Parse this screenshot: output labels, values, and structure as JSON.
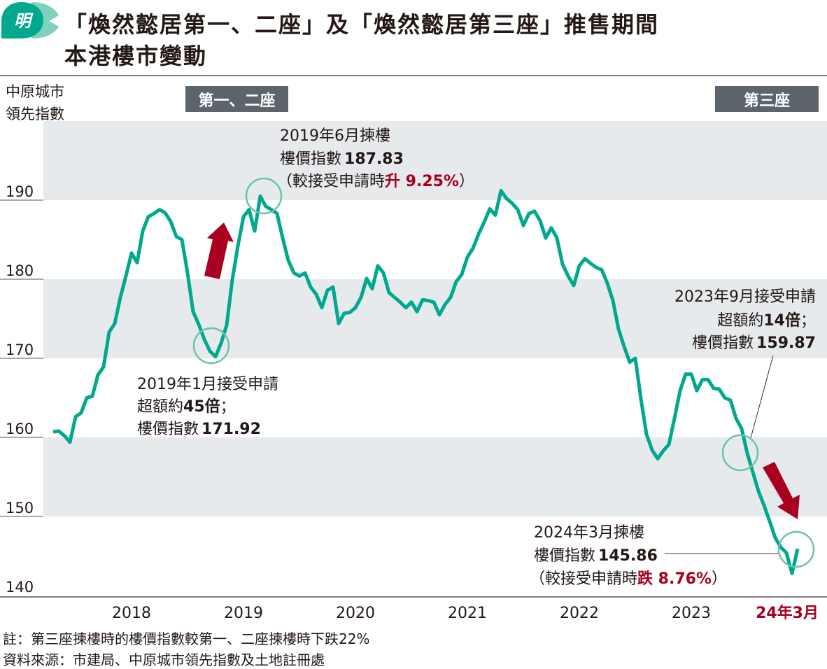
{
  "header": {
    "logo_char": "明",
    "title_line1": "「煥然懿居第一、二座」及「煥然懿居第三座」推售期間",
    "title_line2": "本港樓市變動"
  },
  "tags": {
    "blocks12": "第一、二座",
    "block3": "第三座"
  },
  "colors": {
    "line": "#00a88e",
    "band": "#e6eaed",
    "circle": "#6cc4a8",
    "arrow": "#a8001e",
    "tag": "#5b656b",
    "highlight": "#a8001e"
  },
  "annotations": {
    "jun2019": {
      "l1": "2019年6月揀樓",
      "l2a": "樓價指數",
      "l2b": "187.83",
      "l3a": "（較接受申請時",
      "l3b": "升 9.25%",
      "l3c": "）"
    },
    "jan2019": {
      "l1": "2019年1月接受申請",
      "l2a": "超額約",
      "l2b": "45倍",
      "l2c": "；",
      "l3a": "樓價指數",
      "l3b": "171.92"
    },
    "sep2023": {
      "l1": "2023年9月接受申請",
      "l2a": "超額約",
      "l2b": "14倍",
      "l2c": "；",
      "l3a": "樓價指數",
      "l3b": "159.87"
    },
    "mar2024": {
      "l1": "2024年3月揀樓",
      "l2a": "樓價指數",
      "l2b": "145.86",
      "l3a": "（較接受申請時",
      "l3b": "跌 8.76%",
      "l3c": "）"
    }
  },
  "notes": {
    "note1": "註：第三座揀樓時的樓價指數較第一、二座揀樓時下跌22%",
    "note2": "資料來源：市建局、中原城市領先指數及土地註冊處"
  },
  "chart_data": {
    "type": "line",
    "title": "「煥然懿居第一、二座」及「煥然懿居第三座」推售期間本港樓市變動",
    "ylabel_line1": "中原城市",
    "ylabel_line2": "領先指數",
    "ylim": [
      140,
      200
    ],
    "yticks": [
      140,
      150,
      160,
      170,
      180,
      190
    ],
    "xlim": [
      2017.5,
      2024.25
    ],
    "xticks": [
      {
        "label": "2018",
        "year": 2018
      },
      {
        "label": "2019",
        "year": 2019
      },
      {
        "label": "2020",
        "year": 2020
      },
      {
        "label": "2021",
        "year": 2021
      },
      {
        "label": "2022",
        "year": 2022
      },
      {
        "label": "2023",
        "year": 2023
      }
    ],
    "xtick_end_label": "24年3月",
    "grid": "alternating horizontal bands",
    "series": [
      {
        "name": "中原城市領先指數",
        "x_start": 2017.55,
        "x_step": 0.05,
        "values": [
          160.7,
          160.8,
          160.2,
          159.4,
          162.6,
          163.1,
          165.0,
          165.2,
          167.9,
          168.9,
          173.3,
          174.4,
          177.7,
          180.4,
          183.3,
          182.1,
          186.1,
          187.9,
          188.3,
          188.8,
          188.4,
          187.3,
          185.4,
          185.0,
          180.8,
          175.9,
          174.3,
          172.4,
          170.9,
          170.2,
          171.9,
          174.2,
          179.9,
          184.2,
          187.9,
          188.8,
          186.1,
          190.5,
          189.2,
          188.8,
          188.3,
          185.2,
          182.4,
          180.8,
          180.4,
          180.8,
          179.0,
          178.1,
          176.4,
          178.6,
          179.0,
          174.4,
          175.7,
          175.8,
          176.4,
          177.7,
          180.1,
          178.8,
          181.7,
          180.8,
          178.3,
          177.7,
          177.1,
          176.4,
          177.1,
          175.9,
          177.4,
          177.3,
          177.1,
          175.5,
          176.8,
          177.7,
          179.7,
          180.6,
          182.8,
          183.9,
          185.7,
          187.2,
          188.9,
          188.1,
          191.2,
          190.2,
          189.6,
          188.8,
          186.8,
          188.3,
          188.6,
          187.4,
          185.2,
          186.5,
          185.2,
          181.9,
          180.4,
          179.2,
          181.7,
          182.6,
          182.0,
          181.5,
          181.2,
          179.5,
          177.3,
          173.7,
          171.5,
          169.5,
          170.0,
          164.9,
          160.4,
          158.4,
          157.3,
          158.3,
          159.1,
          162.4,
          165.9,
          168.0,
          168.0,
          165.9,
          167.3,
          167.3,
          166.2,
          166.1,
          165.0,
          164.7,
          162.4,
          161.1,
          158.0,
          155.6,
          153.2,
          151.4,
          149.4,
          147.3,
          146.1,
          145.4,
          142.8,
          145.9
        ]
      }
    ],
    "highlights": [
      {
        "label": "2019年1月接受申請",
        "year": 2019.0,
        "value": 171.92
      },
      {
        "label": "2019年6月揀樓",
        "year": 2019.42,
        "value": 187.83
      },
      {
        "label": "2023年9月接受申請",
        "year": 2023.69,
        "value": 159.87
      },
      {
        "label": "2024年3月揀樓",
        "year": 2024.2,
        "value": 145.86
      }
    ]
  }
}
